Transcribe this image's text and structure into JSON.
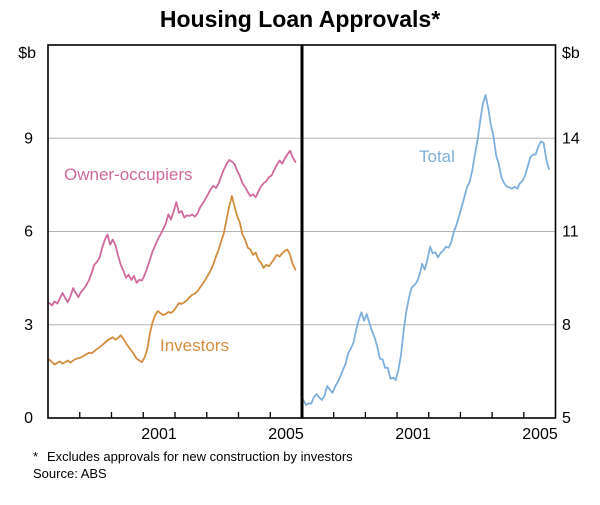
{
  "title": "Housing Loan Approvals*",
  "footnote": {
    "marker": "*",
    "text": "Excludes approvals for new construction by investors",
    "source": "Source: ABS"
  },
  "colors": {
    "owner_occupiers": "#d0699d",
    "investors": "#d28d3e",
    "total": "#7fafdc",
    "gridline": "#b3b3b3",
    "frame": "#000000"
  },
  "axes": {
    "left_panel": {
      "unit": "$b",
      "tick_labels": [
        "0",
        "3",
        "6",
        "9"
      ],
      "vmin": 0,
      "vmax": 12,
      "x_labels": [
        "2001",
        "2005"
      ]
    },
    "right_panel": {
      "unit": "$b",
      "tick_labels": [
        "5",
        "8",
        "11",
        "14"
      ],
      "vmin": 5,
      "vmax": 17,
      "x_labels": [
        "2001",
        "2005"
      ]
    }
  },
  "chart_data": {
    "type": "line",
    "title": "Housing Loan Approvals*",
    "frequency": "monthly",
    "x_start": "1998-01",
    "x_end": "2005-10",
    "x_axis_span_years": [
      1998,
      2006
    ],
    "grid": true,
    "legend_position": "inline-labels",
    "panels": [
      {
        "side": "left",
        "ylim": [
          0,
          12
        ],
        "yticks": [
          0,
          3,
          6,
          9
        ],
        "ylabel": "$b"
      },
      {
        "side": "right",
        "ylim": [
          5,
          17
        ],
        "yticks": [
          5,
          8,
          11,
          14
        ],
        "ylabel": "$b"
      }
    ],
    "series": [
      {
        "name": "Owner-occupiers",
        "panel": 0,
        "values": [
          3.7,
          3.62,
          3.75,
          3.68,
          3.85,
          4.02,
          3.86,
          3.73,
          3.92,
          4.18,
          4.02,
          3.89,
          4.06,
          4.15,
          4.28,
          4.44,
          4.67,
          4.93,
          5.02,
          5.16,
          5.48,
          5.74,
          5.9,
          5.58,
          5.74,
          5.55,
          5.22,
          4.93,
          4.74,
          4.51,
          4.61,
          4.44,
          4.57,
          4.35,
          4.45,
          4.42,
          4.6,
          4.83,
          5.1,
          5.35,
          5.55,
          5.75,
          5.9,
          6.07,
          6.25,
          6.55,
          6.39,
          6.65,
          6.94,
          6.6,
          6.66,
          6.45,
          6.52,
          6.5,
          6.55,
          6.48,
          6.58,
          6.78,
          6.9,
          7.05,
          7.2,
          7.36,
          7.47,
          7.4,
          7.55,
          7.79,
          8.0,
          8.17,
          8.3,
          8.25,
          8.17,
          7.95,
          7.79,
          7.55,
          7.43,
          7.27,
          7.14,
          7.2,
          7.1,
          7.28,
          7.45,
          7.55,
          7.62,
          7.75,
          7.8,
          7.98,
          8.15,
          8.28,
          8.18,
          8.35,
          8.48,
          8.6,
          8.38,
          8.24
        ]
      },
      {
        "name": "Investors",
        "panel": 0,
        "values": [
          1.88,
          1.8,
          1.72,
          1.78,
          1.82,
          1.75,
          1.8,
          1.85,
          1.78,
          1.85,
          1.9,
          1.92,
          1.95,
          2.0,
          2.05,
          2.1,
          2.08,
          2.15,
          2.22,
          2.27,
          2.35,
          2.42,
          2.5,
          2.55,
          2.6,
          2.52,
          2.58,
          2.66,
          2.55,
          2.4,
          2.28,
          2.17,
          2.05,
          1.91,
          1.85,
          1.8,
          1.95,
          2.2,
          2.72,
          3.08,
          3.31,
          3.44,
          3.37,
          3.31,
          3.35,
          3.41,
          3.38,
          3.45,
          3.57,
          3.7,
          3.67,
          3.72,
          3.79,
          3.89,
          3.96,
          4.0,
          4.08,
          4.2,
          4.32,
          4.45,
          4.6,
          4.75,
          4.95,
          5.2,
          5.42,
          5.7,
          5.95,
          6.39,
          6.81,
          7.14,
          6.81,
          6.49,
          6.29,
          5.9,
          5.74,
          5.48,
          5.42,
          5.25,
          5.32,
          5.1,
          4.99,
          4.83,
          4.93,
          4.88,
          5.0,
          5.12,
          5.25,
          5.19,
          5.3,
          5.38,
          5.42,
          5.25,
          4.95,
          4.77
        ]
      },
      {
        "name": "Total",
        "panel": 1,
        "values": [
          5.58,
          5.42,
          5.47,
          5.46,
          5.67,
          5.77,
          5.66,
          5.58,
          5.7,
          6.03,
          5.92,
          5.81,
          6.01,
          6.15,
          6.33,
          6.54,
          6.75,
          7.08,
          7.24,
          7.43,
          7.83,
          8.16,
          8.4,
          8.13,
          8.34,
          8.07,
          7.8,
          7.59,
          7.29,
          6.91,
          6.89,
          6.61,
          6.62,
          6.26,
          6.3,
          6.22,
          6.55,
          7.03,
          7.82,
          8.43,
          8.86,
          9.19,
          9.27,
          9.38,
          9.6,
          9.96,
          9.77,
          10.1,
          10.51,
          10.3,
          10.33,
          10.17,
          10.31,
          10.39,
          10.51,
          10.48,
          10.66,
          10.98,
          11.22,
          11.5,
          11.8,
          12.11,
          12.42,
          12.6,
          12.97,
          13.49,
          13.95,
          14.56,
          15.11,
          15.39,
          14.98,
          14.44,
          14.08,
          13.45,
          13.17,
          12.75,
          12.56,
          12.45,
          12.42,
          12.38,
          12.44,
          12.38,
          12.55,
          12.63,
          12.8,
          13.1,
          13.4,
          13.47,
          13.48,
          13.73,
          13.9,
          13.85,
          13.33,
          13.01
        ]
      }
    ]
  }
}
